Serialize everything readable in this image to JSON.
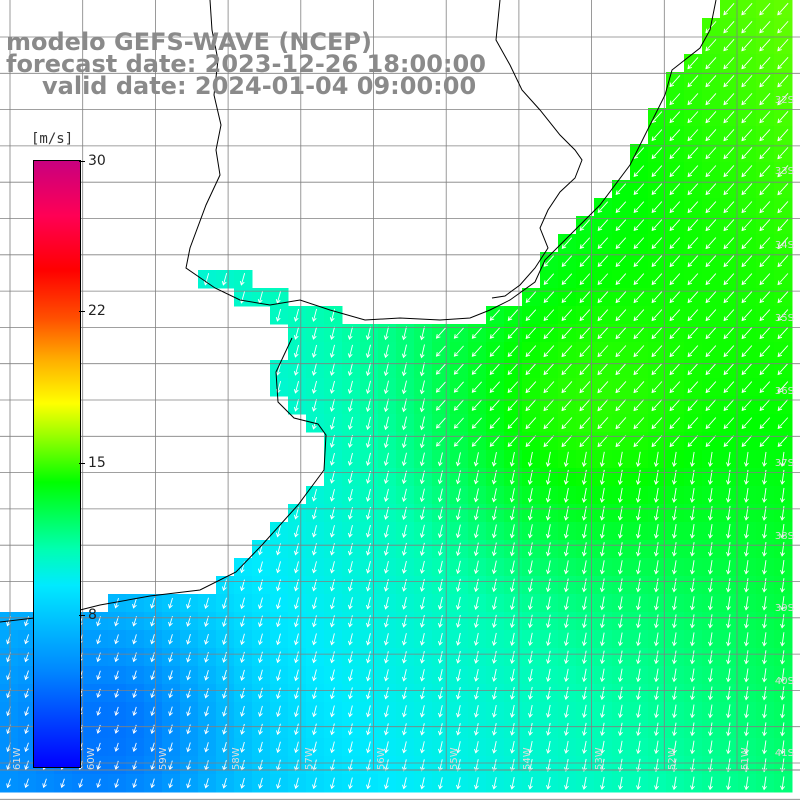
{
  "titles": {
    "model": "modelo GEFS-WAVE (NCEP)",
    "forecast": "forecast date: 2023-12-26 18:00:00",
    "valid": "valid date: 2024-01-04 09:00:00"
  },
  "colorbar": {
    "unit": "[m/s]",
    "ticks": [
      "30",
      "22",
      "15",
      "8"
    ],
    "tick_values": [
      30,
      22,
      15,
      8
    ],
    "min": 0,
    "max": 30
  },
  "latitude_labels": [
    "32S",
    "33S",
    "34S",
    "35S",
    "36S",
    "37S",
    "38S",
    "39S",
    "40S",
    "41S"
  ],
  "longitude_labels": [
    "61W",
    "60W",
    "59W",
    "58W",
    "57W",
    "56W",
    "55W",
    "54W",
    "53W",
    "52W",
    "51W"
  ],
  "colors": {
    "land": "#ffffff",
    "coast": "#000000",
    "grid": "#808080",
    "arrows": "#ffffff",
    "title": "#8a8a8a"
  }
}
